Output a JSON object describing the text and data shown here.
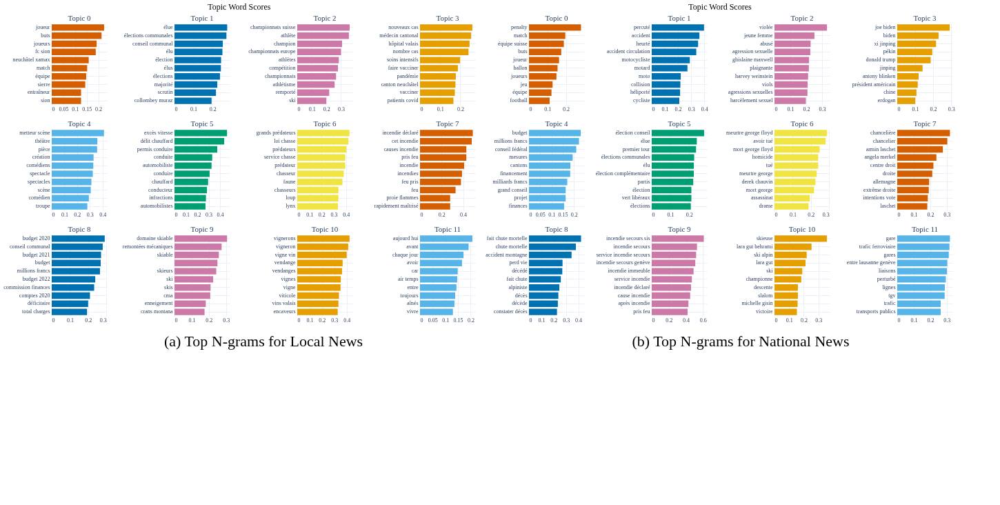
{
  "chart_data": [
    {
      "type": "bar",
      "title": "Topic 0",
      "annotations": [
        "Topic Word Scores",
        "(a) Top N-grams for Local News"
      ],
      "categories": [
        "joueur",
        "buts",
        "joueurs",
        "fc sion",
        "neuchâtel xamax",
        "match",
        "équipe",
        "sierre",
        "entraîneur",
        "sion"
      ],
      "values": [
        0.225,
        0.214,
        0.193,
        0.189,
        0.159,
        0.152,
        0.148,
        0.144,
        0.126,
        0.126
      ],
      "color": "#d55e00",
      "orientation": "horizontal",
      "xlim": [
        0,
        0.237
      ],
      "xticks": [
        0,
        0.05,
        0.1,
        0.15,
        0.2
      ],
      "grid": true
    },
    {
      "type": "bar",
      "title": "Topic 1",
      "categories": [
        "élue",
        "élections communales",
        "conseil communal",
        "élu",
        "élection",
        "élus",
        "élections",
        "majorité",
        "scrutin",
        "collombey muraz"
      ],
      "values": [
        0.277,
        0.273,
        0.254,
        0.252,
        0.245,
        0.244,
        0.239,
        0.225,
        0.218,
        0.195
      ],
      "color": "#0072b2",
      "orientation": "horizontal",
      "xlim": [
        0,
        0.29
      ],
      "xticks": [
        0,
        0.1,
        0.2
      ],
      "grid": true
    },
    {
      "type": "bar",
      "title": "Topic 2",
      "categories": [
        "championnats suisse",
        "athlète",
        "champion",
        "championnats europe",
        "athlètes",
        "compétition",
        "championnats",
        "athlétisme",
        "remporté",
        "ski"
      ],
      "values": [
        0.359,
        0.354,
        0.307,
        0.3,
        0.285,
        0.279,
        0.266,
        0.256,
        0.219,
        0.199
      ],
      "color": "#cc79a7",
      "orientation": "horizontal",
      "xlim": [
        0,
        0.378
      ],
      "xticks": [
        0,
        0.1,
        0.2,
        0.3
      ],
      "grid": true
    },
    {
      "type": "bar",
      "title": "Topic 3",
      "categories": [
        "nouveaux cas",
        "médecin cantonal",
        "hôpital valais",
        "nombre cas",
        "soins intensifs",
        "faire vacciner",
        "pandémie",
        "canton neuchâtel",
        "vacciner",
        "patients covid"
      ],
      "values": [
        0.26,
        0.254,
        0.246,
        0.241,
        0.199,
        0.188,
        0.178,
        0.176,
        0.173,
        0.166
      ],
      "color": "#e69f00",
      "orientation": "horizontal",
      "xlim": [
        0,
        0.274
      ],
      "xticks": [
        0,
        0.1,
        0.2
      ],
      "grid": true
    },
    {
      "type": "bar",
      "title": "Topic 4",
      "categories": [
        "metteur scène",
        "théâtre",
        "pièce",
        "création",
        "comédiens",
        "spectacle",
        "spectacles",
        "scène",
        "comédien",
        "troupe"
      ],
      "values": [
        0.411,
        0.359,
        0.357,
        0.329,
        0.327,
        0.323,
        0.312,
        0.307,
        0.292,
        0.28
      ],
      "color": "#56b4e9",
      "orientation": "horizontal",
      "xlim": [
        0,
        0.434
      ],
      "xticks": [
        0,
        0.1,
        0.2,
        0.3,
        0.4
      ],
      "grid": true
    },
    {
      "type": "bar",
      "title": "Topic 5",
      "categories": [
        "excès vitesse",
        "délit chauffard",
        "permis conduire",
        "conduite",
        "automobiliste",
        "conduire",
        "chauffard",
        "conducteur",
        "infractions",
        "automobilistes"
      ],
      "values": [
        0.461,
        0.436,
        0.375,
        0.331,
        0.325,
        0.308,
        0.295,
        0.285,
        0.276,
        0.272
      ],
      "color": "#009e73",
      "orientation": "horizontal",
      "xlim": [
        0,
        0.484
      ],
      "xticks": [
        0,
        0.1,
        0.2,
        0.3,
        0.4
      ],
      "grid": true
    },
    {
      "type": "bar",
      "title": "Topic 6",
      "categories": [
        "grands prédateurs",
        "loi chasse",
        "prédateurs",
        "service chasse",
        "prédateur",
        "chasseur",
        "faune",
        "chasseurs",
        "loup",
        "lynx"
      ],
      "values": [
        0.429,
        0.42,
        0.404,
        0.394,
        0.394,
        0.382,
        0.371,
        0.338,
        0.338,
        0.334
      ],
      "color": "#f0e442",
      "orientation": "horizontal",
      "xlim": [
        0,
        0.453
      ],
      "xticks": [
        0,
        0.1,
        0.2,
        0.3,
        0.4
      ],
      "grid": true
    },
    {
      "type": "bar",
      "title": "Topic 7",
      "categories": [
        "incendie déclaré",
        "cet incendie",
        "causes incendie",
        "pris feu",
        "incendie",
        "incendies",
        "feu pris",
        "feu",
        "proie flammes",
        "rapidement maîtrisé"
      ],
      "values": [
        0.49,
        0.48,
        0.43,
        0.43,
        0.41,
        0.39,
        0.38,
        0.33,
        0.28,
        0.28
      ],
      "color": "#d55e00",
      "orientation": "horizontal",
      "xlim": [
        0,
        0.512
      ],
      "xticks": [
        0,
        0.2,
        0.4
      ],
      "grid": true
    },
    {
      "type": "bar",
      "title": "Topic 8",
      "categories": [
        "budget 2020",
        "conseil communal",
        "budget 2021",
        "budget",
        "millions francs",
        "budget 2022",
        "commission finances",
        "comptes 2020",
        "déficitaire",
        "total charges"
      ],
      "values": [
        0.291,
        0.28,
        0.271,
        0.269,
        0.265,
        0.239,
        0.233,
        0.21,
        0.2,
        0.194
      ],
      "color": "#0072b2",
      "orientation": "horizontal",
      "xlim": [
        0,
        0.303
      ],
      "xticks": [
        0,
        0.1,
        0.2,
        0.3
      ],
      "grid": true
    },
    {
      "type": "bar",
      "title": "Topic 9",
      "categories": [
        "domaine skiable",
        "remontées mécaniques",
        "skiable",
        null,
        "skieurs",
        "ski",
        "skis",
        "cma",
        "enneigement",
        "crans montana"
      ],
      "values": [
        0.306,
        0.274,
        0.258,
        0.25,
        0.243,
        0.225,
        0.21,
        0.208,
        0.182,
        0.175
      ],
      "color": "#cc79a7",
      "orientation": "horizontal",
      "xlim": [
        0,
        0.321
      ],
      "xticks": [
        0,
        0.1,
        0.2,
        0.3
      ],
      "grid": true
    },
    {
      "type": "bar",
      "title": "Topic 10",
      "categories": [
        "vignerons",
        "vigneron",
        "vigne vin",
        "vendange",
        "vendanges",
        "vignes",
        "vigne",
        "viticole",
        "vins valais",
        "encaveurs"
      ],
      "values": [
        0.423,
        0.412,
        0.4,
        0.367,
        0.362,
        0.352,
        0.35,
        0.337,
        0.333,
        0.327
      ],
      "color": "#e69f00",
      "orientation": "horizontal",
      "xlim": [
        0,
        0.446
      ],
      "xticks": [
        0,
        0.1,
        0.2,
        0.3,
        0.4
      ],
      "grid": true
    },
    {
      "type": "bar",
      "title": "Topic 11",
      "categories": [
        "aujourd hui",
        "avant",
        "chaque jour",
        "avoir",
        "car",
        "air temps",
        "entre",
        "toujours",
        "aînés",
        "vivre"
      ],
      "values": [
        0.207,
        0.192,
        0.172,
        0.166,
        0.149,
        0.147,
        0.144,
        0.139,
        0.136,
        0.13
      ],
      "color": "#56b4e9",
      "orientation": "horizontal",
      "xlim": [
        0,
        0.218
      ],
      "xticks": [
        0,
        0.05,
        0.1,
        0.15,
        0.2
      ],
      "grid": true
    },
    {
      "type": "bar",
      "title": "Topic 0",
      "annotations": [
        "Topic Word Scores",
        "(b) Top N-grams for National News"
      ],
      "categories": [
        "penalty",
        "match",
        "équipe suisse",
        "buts",
        "joueur",
        "ballon",
        "joueurs",
        "jeu",
        "équipe",
        "football"
      ],
      "values": [
        0.282,
        0.197,
        0.189,
        0.175,
        0.163,
        0.155,
        0.149,
        0.128,
        0.122,
        0.112
      ],
      "color": "#d55e00",
      "orientation": "horizontal",
      "xlim": [
        0,
        0.299
      ],
      "xticks": [
        0,
        0.1,
        0.2
      ],
      "grid": true
    },
    {
      "type": "bar",
      "title": "Topic 1",
      "categories": [
        "percuté",
        "accident",
        "heurté",
        "accident circulation",
        "motocycliste",
        "motard",
        "moto",
        "collision",
        "héliporté",
        "cycliste"
      ],
      "values": [
        0.398,
        0.363,
        0.353,
        0.339,
        0.29,
        0.272,
        0.221,
        0.218,
        0.216,
        0.21
      ],
      "color": "#0072b2",
      "orientation": "horizontal",
      "xlim": [
        0,
        0.42
      ],
      "xticks": [
        0,
        0.1,
        0.2,
        0.3,
        0.4
      ],
      "grid": true
    },
    {
      "type": "bar",
      "title": "Topic 2",
      "categories": [
        "violée",
        "jeune femme",
        "abusé",
        "agression sexuelle",
        "ghislaine maxwell",
        "plaignante",
        "harvey weinstein",
        "viols",
        "agressions sexuelles",
        "harcèlement sexuel"
      ],
      "values": [
        0.331,
        0.252,
        0.228,
        0.226,
        0.218,
        0.217,
        0.212,
        0.209,
        0.208,
        0.198
      ],
      "color": "#cc79a7",
      "orientation": "horizontal",
      "xlim": [
        0,
        0.348
      ],
      "xticks": [
        0,
        0.1,
        0.2,
        0.3
      ],
      "grid": true
    },
    {
      "type": "bar",
      "title": "Topic 3",
      "categories": [
        "joe biden",
        "biden",
        "xi jinping",
        "pékin",
        "donald trump",
        "jinping",
        "antony blinken",
        "président américain",
        "chine",
        "erdogan"
      ],
      "values": [
        0.292,
        0.23,
        0.216,
        0.195,
        0.186,
        0.141,
        0.119,
        0.114,
        0.107,
        0.1
      ],
      "color": "#e69f00",
      "orientation": "horizontal",
      "xlim": [
        0,
        0.307
      ],
      "xticks": [
        0,
        0.1,
        0.2,
        0.3
      ],
      "grid": true
    },
    {
      "type": "bar",
      "title": "Topic 4",
      "categories": [
        "budget",
        "millions francs",
        "conseil fédéral",
        "mesures",
        "cantons",
        "financement",
        "milliards francs",
        "grand conseil",
        "projet",
        "finances"
      ],
      "values": [
        0.23,
        0.222,
        0.21,
        0.194,
        0.184,
        0.183,
        0.17,
        0.163,
        0.163,
        0.156
      ],
      "color": "#56b4e9",
      "orientation": "horizontal",
      "xlim": [
        0,
        0.245
      ],
      "xticks": [
        0,
        0.05,
        0.1,
        0.15,
        0.2
      ],
      "grid": true
    },
    {
      "type": "bar",
      "title": "Topic 5",
      "categories": [
        "élection conseil",
        "élue",
        "premier tour",
        "élections communales",
        "élu",
        "élection complémentaire",
        "partis",
        "élection",
        "vert libéraux",
        "élections"
      ],
      "values": [
        0.28,
        0.241,
        0.237,
        0.227,
        0.225,
        0.225,
        0.222,
        0.212,
        0.212,
        0.209
      ],
      "color": "#009e73",
      "orientation": "horizontal",
      "xlim": [
        0,
        0.295
      ],
      "xticks": [
        0,
        0.1,
        0.2
      ],
      "grid": true
    },
    {
      "type": "bar",
      "title": "Topic 6",
      "categories": [
        "meurtre george floyd",
        "avoir tué",
        "mort george floyd",
        "homicide",
        "tué",
        "meurtre george",
        "derek chauvin",
        "mort george",
        "assassinat",
        "drame"
      ],
      "values": [
        0.288,
        0.28,
        0.248,
        0.24,
        0.24,
        0.232,
        0.225,
        0.217,
        0.194,
        0.187
      ],
      "color": "#f0e442",
      "orientation": "horizontal",
      "xlim": [
        0,
        0.303
      ],
      "xticks": [
        0,
        0.1,
        0.2,
        0.3
      ],
      "grid": true
    },
    {
      "type": "bar",
      "title": "Topic 7",
      "categories": [
        "chancelière",
        "chancelier",
        "armin laschet",
        "angela merkel",
        "centre droit",
        "droite",
        "allemagne",
        "extrême droite",
        "intentions vote",
        "laschet"
      ],
      "values": [
        0.319,
        0.303,
        0.276,
        0.237,
        0.219,
        0.212,
        0.193,
        0.191,
        0.185,
        0.182
      ],
      "color": "#d55e00",
      "orientation": "horizontal",
      "xlim": [
        0,
        0.334
      ],
      "xticks": [
        0,
        0.1,
        0.2,
        0.3
      ],
      "grid": true
    },
    {
      "type": "bar",
      "title": "Topic 8",
      "categories": [
        "fait chute mortelle",
        "chute mortelle",
        "accident montagne",
        "perd vie",
        "décédé",
        "fait chute",
        "alpiniste",
        "décès",
        "décède",
        "constater décès"
      ],
      "values": [
        0.422,
        0.38,
        0.345,
        0.272,
        0.27,
        0.258,
        0.246,
        0.238,
        0.234,
        0.227
      ],
      "color": "#0072b2",
      "orientation": "horizontal",
      "xlim": [
        0,
        0.447
      ],
      "xticks": [
        0,
        0.1,
        0.2,
        0.3,
        0.4
      ],
      "grid": true
    },
    {
      "type": "bar",
      "title": "Topic 9",
      "categories": [
        "incendie secours sis",
        "incendie secours",
        "service incendie secours",
        "incendie secours genève",
        "incendie immeuble",
        "service incendie",
        "incendie déclaré",
        "cause incendie",
        "après incendie",
        "pris feu"
      ],
      "values": [
        0.61,
        0.53,
        0.52,
        0.51,
        0.49,
        0.47,
        0.46,
        0.45,
        0.43,
        0.42
      ],
      "color": "#cc79a7",
      "orientation": "horizontal",
      "xlim": [
        0,
        0.646
      ],
      "xticks": [
        0,
        0.2,
        0.4,
        0.6
      ],
      "grid": true
    },
    {
      "type": "bar",
      "title": "Topic 10",
      "categories": [
        "skieuse",
        "lara gut behrami",
        "ski alpin",
        "lara gut",
        "ski",
        "championne",
        "descente",
        "slalom",
        "michelle gisin",
        "victoire"
      ],
      "values": [
        0.358,
        0.253,
        0.22,
        0.212,
        0.19,
        0.183,
        0.16,
        0.16,
        0.158,
        0.153
      ],
      "color": "#e69f00",
      "orientation": "horizontal",
      "xlim": [
        0,
        0.377
      ],
      "xticks": [
        0,
        0.1,
        0.2,
        0.3
      ],
      "grid": true
    },
    {
      "type": "bar",
      "title": "Topic 11",
      "categories": [
        "gare",
        "trafic ferroviaire",
        "gares",
        "entre lausanne genève",
        "liaisons",
        "perturbé",
        "lignes",
        "tgv",
        "trafic",
        "transports publics"
      ],
      "values": [
        0.319,
        0.316,
        0.312,
        0.303,
        0.301,
        0.294,
        0.288,
        0.287,
        0.263,
        0.263
      ],
      "color": "#56b4e9",
      "orientation": "horizontal",
      "xlim": [
        0,
        0.334
      ],
      "xticks": [
        0,
        0.1,
        0.2,
        0.3
      ],
      "grid": true
    }
  ]
}
